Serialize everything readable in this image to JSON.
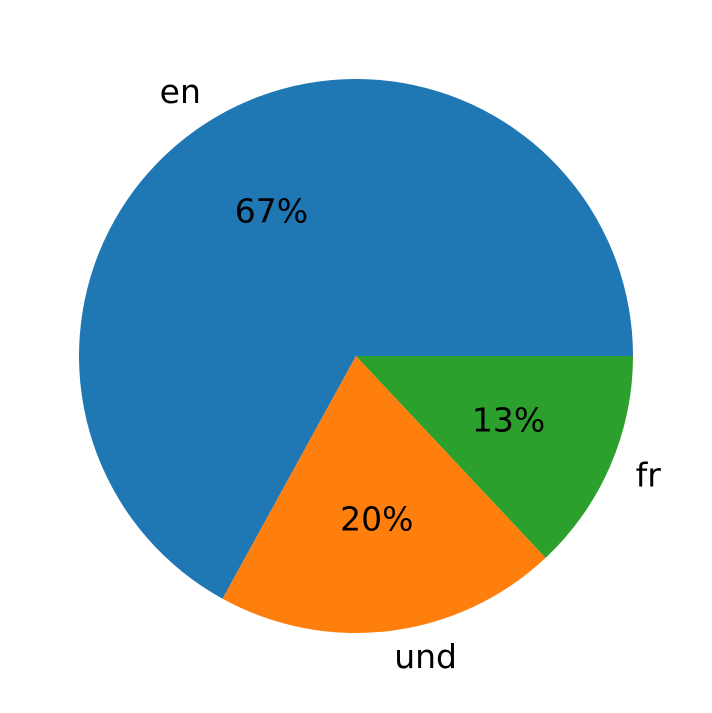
{
  "chart_data": {
    "type": "pie",
    "categories": [
      "en",
      "und",
      "fr"
    ],
    "values": [
      67,
      20,
      13
    ],
    "value_labels": [
      "67%",
      "20%",
      "13%"
    ],
    "colors": [
      "#1f77b4",
      "#ff7f0e",
      "#2ca02c"
    ]
  }
}
